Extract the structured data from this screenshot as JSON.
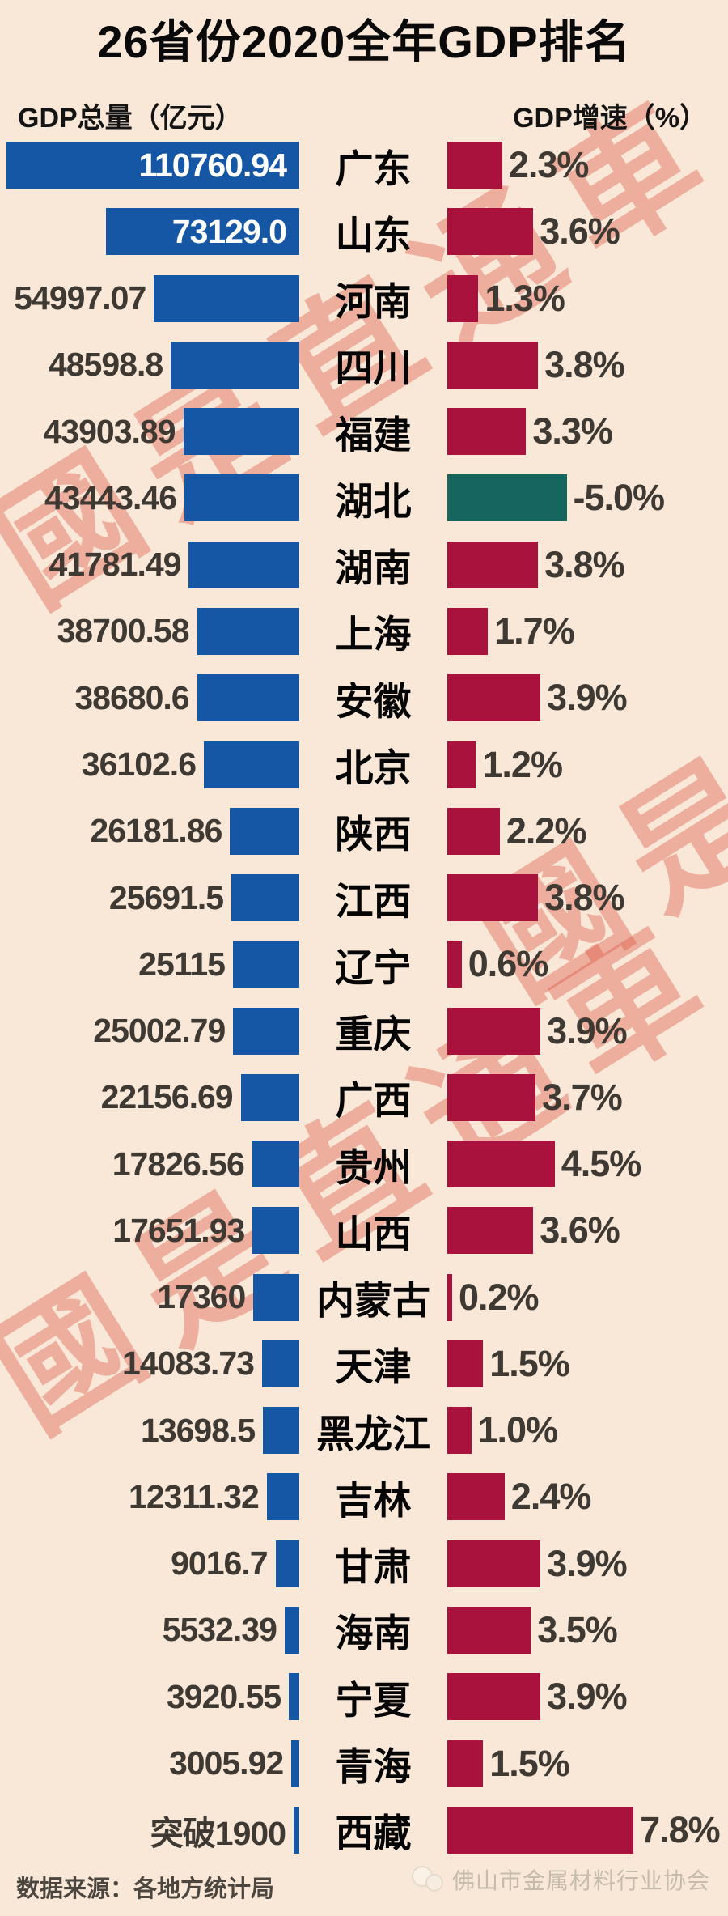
{
  "title": "26省份2020全年GDP排名",
  "headers": {
    "left": "GDP总量（亿元）",
    "right": "GDP增速（%）"
  },
  "watermark": {
    "text": "國是直通車",
    "color": "#dc5847"
  },
  "footer": {
    "source": "数据来源：各地方统计局",
    "publisher": "佛山市金属材料行业协会"
  },
  "colors": {
    "background": "#f9e8d8",
    "gdp_bar_blue": "#1557a4",
    "growth_bar_red": "#a8123d",
    "growth_bar_negative_teal": "#16655f",
    "label_dark": "#3e3933",
    "label_on_bar": "#ffffff",
    "watermark": "#dc5847"
  },
  "chart_data": {
    "type": "bar",
    "title": "26省份2020全年GDP排名",
    "categories": [
      "广东",
      "山东",
      "河南",
      "四川",
      "福建",
      "湖北",
      "湖南",
      "上海",
      "安徽",
      "北京",
      "陕西",
      "江西",
      "辽宁",
      "重庆",
      "广西",
      "贵州",
      "山西",
      "内蒙古",
      "天津",
      "黑龙江",
      "吉林",
      "甘肃",
      "海南",
      "宁夏",
      "青海",
      "西藏"
    ],
    "series": [
      {
        "name": "GDP总量（亿元）",
        "values": [
          110760.94,
          73129.0,
          54997.07,
          48598.8,
          43903.89,
          43443.46,
          41781.49,
          38700.58,
          38680.6,
          36102.6,
          26181.86,
          25691.5,
          25115,
          25002.79,
          22156.69,
          17826.56,
          17651.93,
          17360,
          14083.73,
          13698.5,
          12311.32,
          9016.7,
          5532.39,
          3920.55,
          3005.92,
          1900
        ]
      },
      {
        "name": "GDP增速（%）",
        "values": [
          2.3,
          3.6,
          1.3,
          3.8,
          3.3,
          -5.0,
          3.8,
          1.7,
          3.9,
          1.2,
          2.2,
          3.8,
          0.6,
          3.9,
          3.7,
          4.5,
          3.6,
          0.2,
          1.5,
          1.0,
          2.4,
          3.9,
          3.5,
          3.9,
          1.5,
          7.8
        ]
      }
    ],
    "legend_position": "column-headers",
    "grid": false,
    "rows": [
      {
        "name": "广东",
        "gdp_label": "110760.94",
        "gdp_value": 110760.94,
        "label_inside": true,
        "growth_label": "2.3%",
        "growth_value": 2.3
      },
      {
        "name": "山东",
        "gdp_label": "73129.0",
        "gdp_value": 73129.0,
        "label_inside": true,
        "growth_label": "3.6%",
        "growth_value": 3.6
      },
      {
        "name": "河南",
        "gdp_label": "54997.07",
        "gdp_value": 54997.07,
        "label_inside": false,
        "growth_label": "1.3%",
        "growth_value": 1.3
      },
      {
        "name": "四川",
        "gdp_label": "48598.8",
        "gdp_value": 48598.8,
        "label_inside": false,
        "growth_label": "3.8%",
        "growth_value": 3.8
      },
      {
        "name": "福建",
        "gdp_label": "43903.89",
        "gdp_value": 43903.89,
        "label_inside": false,
        "growth_label": "3.3%",
        "growth_value": 3.3
      },
      {
        "name": "湖北",
        "gdp_label": "43443.46",
        "gdp_value": 43443.46,
        "label_inside": false,
        "growth_label": "-5.0%",
        "growth_value": -5.0
      },
      {
        "name": "湖南",
        "gdp_label": "41781.49",
        "gdp_value": 41781.49,
        "label_inside": false,
        "growth_label": "3.8%",
        "growth_value": 3.8
      },
      {
        "name": "上海",
        "gdp_label": "38700.58",
        "gdp_value": 38700.58,
        "label_inside": false,
        "growth_label": "1.7%",
        "growth_value": 1.7
      },
      {
        "name": "安徽",
        "gdp_label": "38680.6",
        "gdp_value": 38680.6,
        "label_inside": false,
        "growth_label": "3.9%",
        "growth_value": 3.9
      },
      {
        "name": "北京",
        "gdp_label": "36102.6",
        "gdp_value": 36102.6,
        "label_inside": false,
        "growth_label": "1.2%",
        "growth_value": 1.2
      },
      {
        "name": "陕西",
        "gdp_label": "26181.86",
        "gdp_value": 26181.86,
        "label_inside": false,
        "growth_label": "2.2%",
        "growth_value": 2.2
      },
      {
        "name": "江西",
        "gdp_label": "25691.5",
        "gdp_value": 25691.5,
        "label_inside": false,
        "growth_label": "3.8%",
        "growth_value": 3.8
      },
      {
        "name": "辽宁",
        "gdp_label": "25115",
        "gdp_value": 25115,
        "label_inside": false,
        "growth_label": "0.6%",
        "growth_value": 0.6
      },
      {
        "name": "重庆",
        "gdp_label": "25002.79",
        "gdp_value": 25002.79,
        "label_inside": false,
        "growth_label": "3.9%",
        "growth_value": 3.9
      },
      {
        "name": "广西",
        "gdp_label": "22156.69",
        "gdp_value": 22156.69,
        "label_inside": false,
        "growth_label": "3.7%",
        "growth_value": 3.7
      },
      {
        "name": "贵州",
        "gdp_label": "17826.56",
        "gdp_value": 17826.56,
        "label_inside": false,
        "growth_label": "4.5%",
        "growth_value": 4.5
      },
      {
        "name": "山西",
        "gdp_label": "17651.93",
        "gdp_value": 17651.93,
        "label_inside": false,
        "growth_label": "3.6%",
        "growth_value": 3.6
      },
      {
        "name": "内蒙古",
        "gdp_label": "17360",
        "gdp_value": 17360,
        "label_inside": false,
        "growth_label": "0.2%",
        "growth_value": 0.2
      },
      {
        "name": "天津",
        "gdp_label": "14083.73",
        "gdp_value": 14083.73,
        "label_inside": false,
        "growth_label": "1.5%",
        "growth_value": 1.5
      },
      {
        "name": "黑龙江",
        "gdp_label": "13698.5",
        "gdp_value": 13698.5,
        "label_inside": false,
        "growth_label": "1.0%",
        "growth_value": 1.0
      },
      {
        "name": "吉林",
        "gdp_label": "12311.32",
        "gdp_value": 12311.32,
        "label_inside": false,
        "growth_label": "2.4%",
        "growth_value": 2.4
      },
      {
        "name": "甘肃",
        "gdp_label": "9016.7",
        "gdp_value": 9016.7,
        "label_inside": false,
        "growth_label": "3.9%",
        "growth_value": 3.9
      },
      {
        "name": "海南",
        "gdp_label": "5532.39",
        "gdp_value": 5532.39,
        "label_inside": false,
        "growth_label": "3.5%",
        "growth_value": 3.5
      },
      {
        "name": "宁夏",
        "gdp_label": "3920.55",
        "gdp_value": 3920.55,
        "label_inside": false,
        "growth_label": "3.9%",
        "growth_value": 3.9
      },
      {
        "name": "青海",
        "gdp_label": "3005.92",
        "gdp_value": 3005.92,
        "label_inside": false,
        "growth_label": "1.5%",
        "growth_value": 1.5
      },
      {
        "name": "西藏",
        "gdp_label": "突破1900",
        "gdp_value": 1900,
        "label_inside": false,
        "growth_label": "7.8%",
        "growth_value": 7.8
      }
    ]
  }
}
